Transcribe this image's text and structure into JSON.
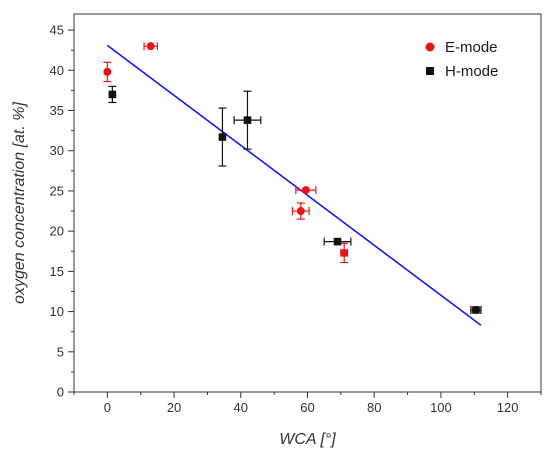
{
  "chart_data": {
    "type": "scatter",
    "xlabel": "WCA [°]",
    "ylabel": "oxygen concentration [at. %]",
    "xlim": [
      -10,
      130
    ],
    "ylim": [
      0,
      47
    ],
    "xticks": [
      0,
      20,
      40,
      60,
      80,
      100,
      120
    ],
    "yticks": [
      0,
      5,
      10,
      15,
      20,
      25,
      30,
      35,
      40,
      45
    ],
    "grid": false,
    "legend_position": "top-right",
    "series": [
      {
        "name": "E-mode",
        "marker": "circle",
        "color": "#e8141b",
        "points": [
          {
            "x": 0,
            "y": 39.8,
            "xerr": 0,
            "yerr": 1.2
          },
          {
            "x": 13,
            "y": 43.0,
            "xerr": 2.0,
            "yerr": 0
          },
          {
            "x": 58,
            "y": 22.5,
            "xerr": 2.5,
            "yerr": 1.0
          },
          {
            "x": 59.5,
            "y": 25.1,
            "xerr": 3.0,
            "yerr": 0
          },
          {
            "x": 71,
            "y": 17.3,
            "xerr": 1.0,
            "yerr": 1.2
          },
          {
            "x": 110.5,
            "y": 10.2,
            "xerr": 1.5,
            "yerr": 0
          }
        ]
      },
      {
        "name": "H-mode",
        "marker": "square",
        "color": "#111111",
        "points": [
          {
            "x": 1.5,
            "y": 37.0,
            "xerr": 0,
            "yerr": 1.0
          },
          {
            "x": 34.5,
            "y": 31.7,
            "xerr": 0,
            "yerr": 3.6
          },
          {
            "x": 42,
            "y": 33.8,
            "xerr": 4.0,
            "yerr": 3.6
          },
          {
            "x": 69,
            "y": 18.7,
            "xerr": 4.0,
            "yerr": 0
          },
          {
            "x": 110.5,
            "y": 10.2,
            "xerr": 1.5,
            "yerr": 0
          }
        ]
      }
    ],
    "fit_line": {
      "x": [
        0,
        112
      ],
      "y": [
        43.1,
        8.3
      ],
      "color": "#1a1ae6"
    }
  }
}
